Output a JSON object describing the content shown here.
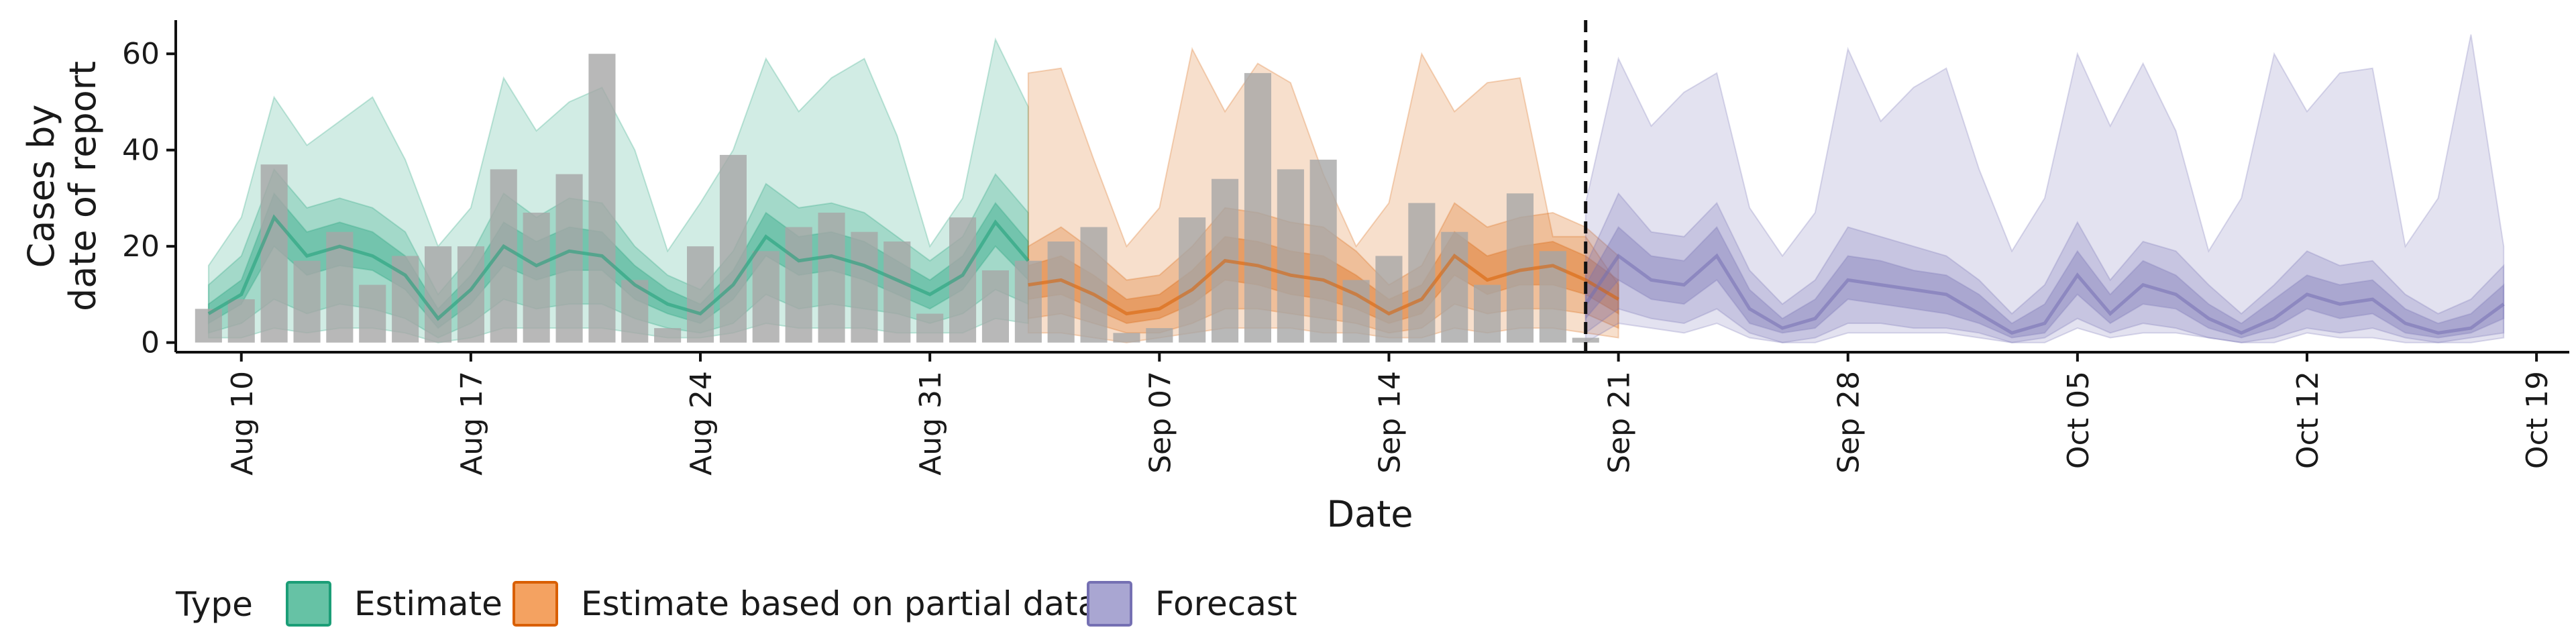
{
  "chart_data": {
    "type": "area",
    "xlabel": "Date",
    "ylabel": [
      "Cases by",
      "date of report"
    ],
    "ylim": [
      -2,
      67
    ],
    "yticks": [
      0,
      20,
      40,
      60
    ],
    "x_start": "2020-08-08",
    "x_end": "2020-10-20",
    "forecast_start": "2020-09-20",
    "xticks": [
      {
        "date": "2020-08-10",
        "label": "Aug 10"
      },
      {
        "date": "2020-08-17",
        "label": "Aug 17"
      },
      {
        "date": "2020-08-24",
        "label": "Aug 24"
      },
      {
        "date": "2020-08-31",
        "label": "Aug 31"
      },
      {
        "date": "2020-09-07",
        "label": "Sep 07"
      },
      {
        "date": "2020-09-14",
        "label": "Sep 14"
      },
      {
        "date": "2020-09-21",
        "label": "Sep 21"
      },
      {
        "date": "2020-09-28",
        "label": "Sep 28"
      },
      {
        "date": "2020-10-05",
        "label": "Oct 05"
      },
      {
        "date": "2020-10-12",
        "label": "Oct 12"
      },
      {
        "date": "2020-10-19",
        "label": "Oct 19"
      }
    ],
    "bars": {
      "start": "2020-08-09",
      "color": "#a6a6a6",
      "values": [
        7,
        9,
        37,
        17,
        23,
        12,
        18,
        20,
        20,
        36,
        27,
        35,
        60,
        13,
        3,
        20,
        39,
        19,
        24,
        27,
        23,
        21,
        6,
        26,
        15,
        17,
        21,
        24,
        2,
        3,
        26,
        34,
        56,
        36,
        38,
        13,
        18,
        29,
        23,
        12,
        31,
        19,
        1
      ]
    },
    "legend": {
      "title": "Type",
      "items": [
        {
          "label": "Estimate",
          "fill": "#66c2a5",
          "stroke": "#1b9e77"
        },
        {
          "label": "Estimate based on partial data",
          "fill": "#f4a261",
          "stroke": "#d95f02"
        },
        {
          "label": "Forecast",
          "fill": "#a9a6d2",
          "stroke": "#7570b3"
        }
      ]
    },
    "series": [
      {
        "name": "Estimate",
        "start": "2020-08-09",
        "color": "#1b9e77",
        "median": [
          6,
          10,
          26,
          18,
          20,
          18,
          14,
          5,
          11,
          20,
          16,
          19,
          18,
          12,
          8,
          6,
          12,
          22,
          17,
          18,
          16,
          13,
          10,
          14,
          25,
          17
        ],
        "lo50": [
          4,
          8,
          20,
          14,
          16,
          15,
          11,
          3,
          8,
          16,
          13,
          15,
          15,
          9,
          6,
          4,
          9,
          18,
          14,
          15,
          13,
          10,
          7,
          11,
          20,
          13
        ],
        "hi50": [
          8,
          13,
          31,
          23,
          25,
          23,
          18,
          7,
          14,
          25,
          21,
          24,
          23,
          16,
          11,
          8,
          15,
          27,
          22,
          23,
          21,
          17,
          13,
          18,
          29,
          21
        ],
        "lo90": [
          2,
          4,
          9,
          6,
          8,
          7,
          5,
          1,
          4,
          9,
          7,
          8,
          8,
          5,
          3,
          2,
          4,
          10,
          7,
          8,
          7,
          6,
          4,
          6,
          11,
          8
        ],
        "hi90": [
          12,
          18,
          36,
          28,
          30,
          28,
          23,
          10,
          18,
          31,
          26,
          30,
          29,
          20,
          14,
          11,
          19,
          33,
          28,
          29,
          27,
          22,
          17,
          22,
          35,
          27
        ],
        "lo_outer": [
          1,
          1,
          3,
          2,
          3,
          3,
          2,
          0,
          1,
          3,
          3,
          3,
          3,
          2,
          1,
          1,
          2,
          4,
          3,
          3,
          3,
          2,
          2,
          2,
          5,
          4
        ],
        "hi_outer": [
          16,
          26,
          51,
          41,
          46,
          51,
          38,
          20,
          28,
          55,
          44,
          50,
          53,
          40,
          19,
          29,
          40,
          59,
          48,
          55,
          59,
          43,
          20,
          30,
          63,
          49
        ]
      },
      {
        "name": "Estimate based on partial data",
        "start": "2020-09-03",
        "color": "#d95f02",
        "median": [
          12,
          13,
          10,
          6,
          7,
          11,
          17,
          16,
          14,
          13,
          10,
          6,
          9,
          18,
          13,
          15,
          16,
          13,
          9
        ],
        "lo50": [
          9,
          10,
          7,
          4,
          5,
          8,
          13,
          12,
          10,
          9,
          7,
          4,
          6,
          14,
          10,
          12,
          12,
          10,
          6
        ],
        "hi50": [
          16,
          18,
          14,
          9,
          10,
          15,
          22,
          21,
          19,
          18,
          14,
          9,
          12,
          23,
          18,
          20,
          21,
          18,
          13
        ],
        "lo90": [
          5,
          6,
          4,
          2,
          2,
          4,
          7,
          7,
          6,
          5,
          4,
          2,
          3,
          8,
          6,
          7,
          7,
          6,
          3
        ],
        "hi90": [
          20,
          24,
          19,
          13,
          14,
          20,
          28,
          27,
          25,
          24,
          19,
          12,
          16,
          29,
          24,
          26,
          27,
          24,
          18
        ],
        "lo_outer": [
          2,
          2,
          1,
          0,
          1,
          2,
          3,
          3,
          3,
          2,
          2,
          1,
          1,
          3,
          2,
          3,
          3,
          2,
          1
        ],
        "hi_outer": [
          56,
          57,
          38,
          20,
          28,
          61,
          48,
          58,
          54,
          35,
          20,
          29,
          60,
          48,
          54,
          55,
          22,
          22,
          12
        ]
      },
      {
        "name": "Forecast",
        "start": "2020-09-20",
        "color": "#7570b3",
        "median": [
          8,
          18,
          13,
          12,
          18,
          7,
          3,
          5,
          13,
          12,
          11,
          10,
          6,
          2,
          4,
          14,
          6,
          12,
          10,
          5,
          2,
          5,
          10,
          8,
          9,
          4,
          2,
          3,
          8
        ],
        "lo50": [
          5,
          13,
          9,
          8,
          13,
          4,
          2,
          3,
          9,
          8,
          7,
          6,
          4,
          1,
          2,
          10,
          4,
          8,
          7,
          3,
          1,
          3,
          7,
          5,
          6,
          2,
          1,
          2,
          5
        ],
        "hi50": [
          12,
          24,
          18,
          17,
          24,
          11,
          5,
          9,
          18,
          17,
          15,
          14,
          10,
          4,
          8,
          19,
          10,
          17,
          14,
          8,
          4,
          9,
          14,
          12,
          13,
          7,
          4,
          6,
          12
        ],
        "lo90": [
          2,
          7,
          5,
          4,
          7,
          2,
          0,
          1,
          4,
          4,
          3,
          3,
          2,
          0,
          1,
          5,
          2,
          4,
          3,
          1,
          0,
          1,
          3,
          2,
          3,
          1,
          0,
          1,
          2
        ],
        "hi90": [
          16,
          31,
          23,
          22,
          29,
          15,
          8,
          13,
          24,
          22,
          20,
          18,
          13,
          6,
          12,
          25,
          13,
          21,
          19,
          12,
          6,
          12,
          19,
          16,
          17,
          10,
          6,
          9,
          16
        ],
        "lo_outer": [
          0,
          4,
          3,
          2,
          4,
          1,
          0,
          0,
          2,
          2,
          2,
          2,
          1,
          0,
          0,
          3,
          1,
          2,
          2,
          1,
          0,
          0,
          2,
          1,
          1,
          0,
          0,
          0,
          1
        ],
        "hi_outer": [
          29,
          59,
          45,
          52,
          56,
          28,
          18,
          27,
          61,
          46,
          53,
          57,
          36,
          19,
          30,
          60,
          45,
          58,
          44,
          19,
          30,
          60,
          48,
          56,
          57,
          20,
          30,
          64,
          20
        ]
      }
    ]
  }
}
